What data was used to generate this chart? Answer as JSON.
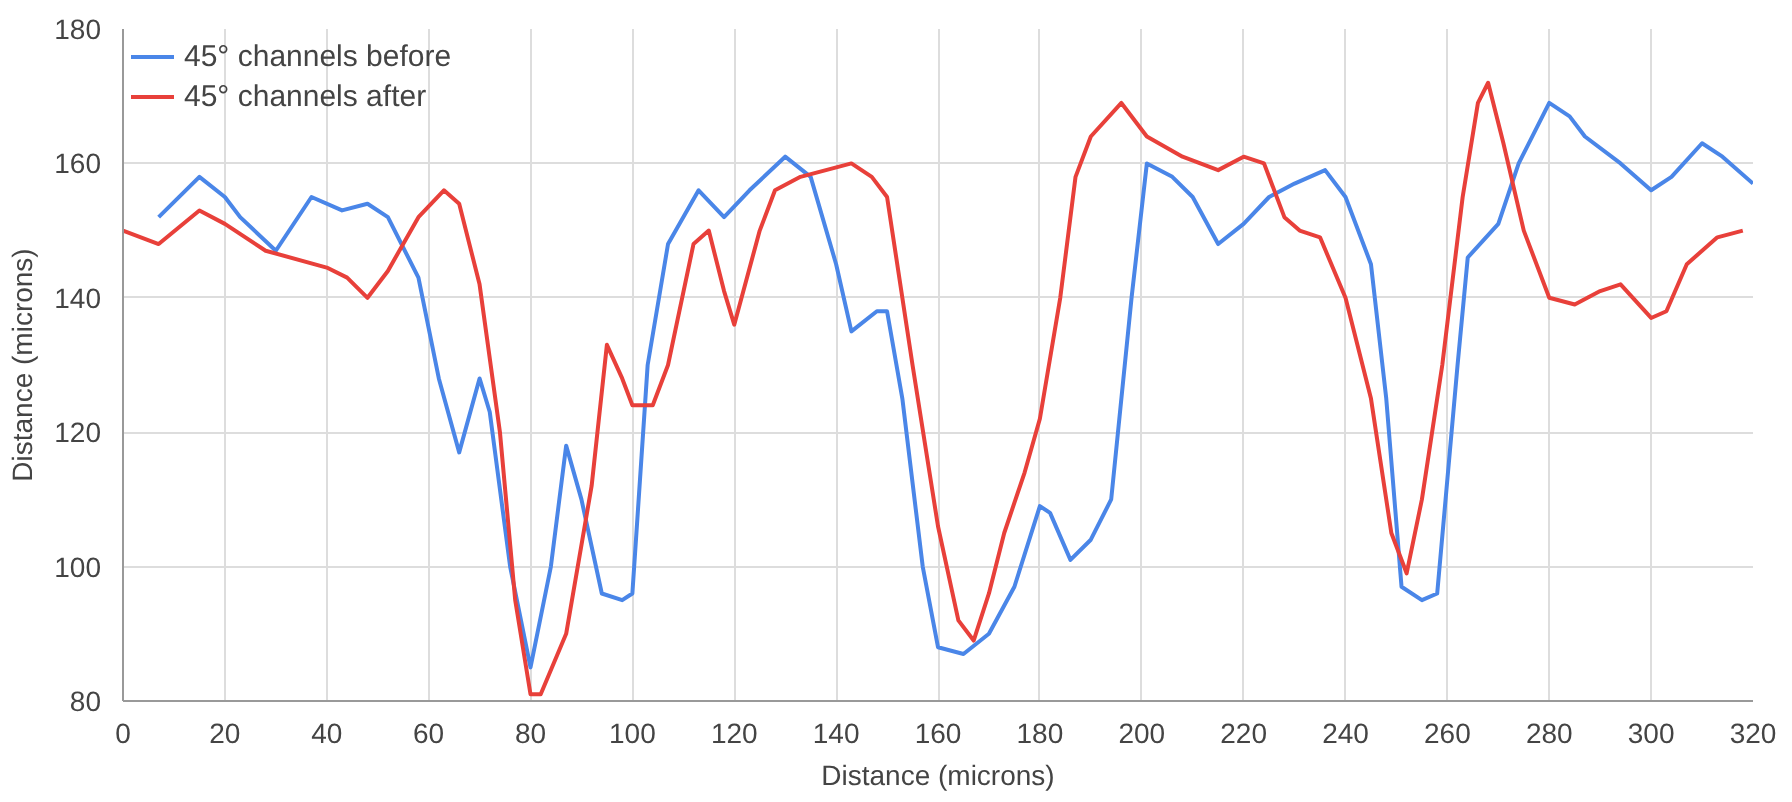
{
  "chart_data": {
    "type": "line",
    "xlabel": "Distance (microns)",
    "ylabel": "Distance (microns)",
    "xlim": [
      0,
      320
    ],
    "xticks": [
      0,
      20,
      40,
      60,
      80,
      100,
      120,
      140,
      160,
      180,
      200,
      220,
      240,
      260,
      280,
      300,
      320
    ],
    "ylim": [
      80,
      180
    ],
    "yticks": [
      80,
      100,
      120,
      140,
      160,
      180
    ],
    "grid": true,
    "legend": "top left",
    "marker": "none",
    "line_style": "solid",
    "series": [
      {
        "name": "45° channels before",
        "color": "#4a86e8",
        "x": [
          7,
          15,
          20,
          23,
          30,
          37,
          43,
          48,
          52,
          58,
          62,
          66,
          70,
          72,
          76,
          80,
          84,
          87,
          90,
          94,
          98,
          100,
          103,
          107,
          113,
          118,
          123,
          130,
          135,
          140,
          143,
          148,
          150,
          153,
          157,
          160,
          165,
          170,
          175,
          180,
          182,
          186,
          190,
          194,
          198,
          201,
          206,
          210,
          215,
          220,
          225,
          230,
          236,
          240,
          245,
          248,
          251,
          255,
          258,
          262,
          264,
          270,
          274,
          280,
          284,
          287,
          294,
          300,
          304,
          310,
          314,
          320
        ],
        "values": [
          152,
          158,
          155,
          152,
          147,
          155,
          153,
          154,
          152,
          143,
          128,
          117,
          128,
          123,
          100,
          85,
          100,
          118,
          110,
          96,
          95,
          96,
          130,
          148,
          156,
          152,
          156,
          161,
          158,
          145,
          135,
          138,
          138,
          125,
          100,
          88,
          87,
          90,
          97,
          109,
          108,
          101,
          104,
          110,
          140,
          160,
          158,
          155,
          148,
          151,
          155,
          157,
          159,
          155,
          145,
          125,
          97,
          95,
          96,
          130,
          146,
          151,
          160,
          169,
          167,
          164,
          160,
          156,
          158,
          163,
          161,
          157
        ]
      },
      {
        "name": "45° channels after",
        "color": "#e8403a",
        "x": [
          0,
          7,
          15,
          20,
          28,
          40,
          44,
          48,
          52,
          58,
          63,
          66,
          70,
          74,
          77,
          80,
          82,
          87,
          92,
          95,
          98,
          100,
          104,
          107,
          112,
          115,
          118,
          120,
          125,
          128,
          133,
          143,
          147,
          150,
          155,
          160,
          164,
          167,
          170,
          173,
          177,
          180,
          184,
          187,
          190,
          196,
          201,
          208,
          215,
          220,
          224,
          228,
          231,
          235,
          240,
          245,
          249,
          252,
          255,
          259,
          263,
          266,
          268,
          271,
          275,
          280,
          285,
          290,
          294,
          300,
          303,
          307,
          313,
          318
        ],
        "values": [
          150,
          148,
          153,
          151,
          147,
          144.5,
          143,
          140,
          144,
          152,
          156,
          154,
          142,
          120,
          95,
          81,
          81,
          90,
          112,
          133,
          128,
          124,
          124,
          130,
          148,
          150,
          141,
          136,
          150,
          156,
          158,
          160,
          158,
          155,
          130,
          106,
          92,
          89,
          96,
          105,
          114,
          122,
          140,
          158,
          164,
          169,
          164,
          161,
          159,
          161,
          160,
          152,
          150,
          149,
          140,
          125,
          105,
          99,
          110,
          130,
          155,
          169,
          172,
          163,
          150,
          140,
          139,
          141,
          142,
          137,
          138,
          145,
          149,
          150
        ]
      }
    ]
  }
}
